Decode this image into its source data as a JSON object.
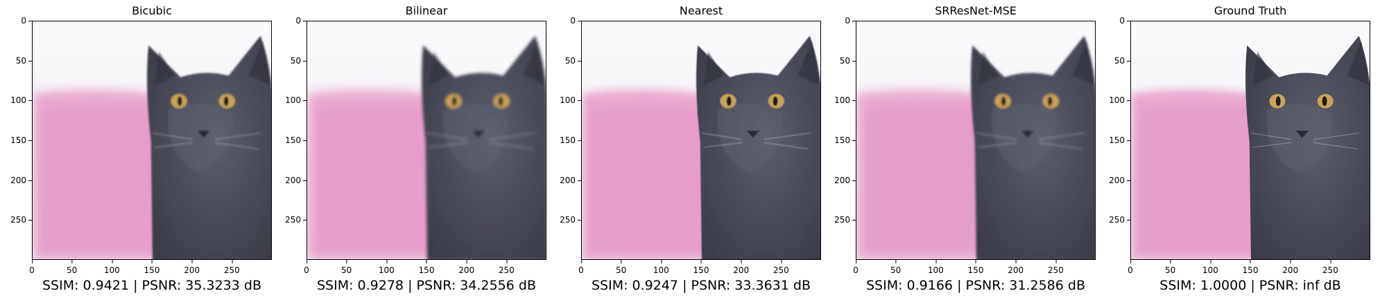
{
  "panels": [
    {
      "title": "Bicubic",
      "metrics": "SSIM: 0.9421 | PSNR: 35.3233 dB",
      "blur": 1.2
    },
    {
      "title": "Bilinear",
      "metrics": "SSIM: 0.9278 | PSNR: 34.2556 dB",
      "blur": 1.8
    },
    {
      "title": "Nearest",
      "metrics": "SSIM: 0.9247 | PSNR: 33.3631 dB",
      "blur": 0.6
    },
    {
      "title": "SRResNet-MSE",
      "metrics": "SSIM: 0.9166 | PSNR: 31.2586 dB",
      "blur": 1.4
    },
    {
      "title": "Ground Truth",
      "metrics": "SSIM: 1.0000 | PSNR: inf dB",
      "blur": 0
    }
  ],
  "axes": {
    "x_ticks": [
      "0",
      "50",
      "100",
      "150",
      "200",
      "250"
    ],
    "y_ticks": [
      "0",
      "50",
      "100",
      "150",
      "200",
      "250"
    ],
    "x_range": [
      0,
      300
    ],
    "y_range": [
      0,
      300
    ]
  },
  "image_content": "grey cat with yellow eyes in front of pink knitted pillow",
  "colors": {
    "background": "#f4f4f6",
    "pillow": "#e9a9cf",
    "cat": "#4b4d5c",
    "eyes": "#c9a35a"
  }
}
